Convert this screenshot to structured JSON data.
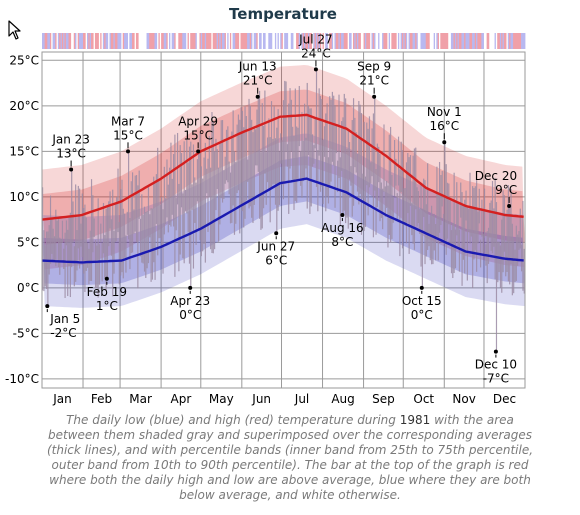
{
  "chart_data": {
    "type": "line",
    "title": "Temperature",
    "year": "1981",
    "y_unit": "°C",
    "ylim": [
      -11,
      28
    ],
    "xlim": [
      0,
      365
    ],
    "grid": true,
    "y_ticks": [
      -10,
      -5,
      0,
      5,
      10,
      15,
      20,
      25
    ],
    "y_tick_labels": [
      "-10°C",
      "-5°C",
      "0°C",
      "5°C",
      "10°C",
      "15°C",
      "20°C",
      "25°C"
    ],
    "months": [
      "Jan",
      "Feb",
      "Mar",
      "Apr",
      "May",
      "Jun",
      "Jul",
      "Aug",
      "Sep",
      "Oct",
      "Nov",
      "Dec"
    ],
    "series": [
      {
        "kind": "average high (thick red line)",
        "color": "#d42020",
        "x": [
          0,
          30,
          60,
          90,
          120,
          150,
          180,
          200,
          230,
          260,
          290,
          320,
          350,
          365
        ],
        "y": [
          7.5,
          8,
          9.5,
          12,
          15,
          17,
          18.8,
          19,
          17.5,
          14.5,
          11,
          9,
          8,
          7.8
        ]
      },
      {
        "kind": "average low (thick blue line)",
        "color": "#1a1ab0",
        "x": [
          0,
          30,
          60,
          90,
          120,
          150,
          180,
          200,
          230,
          260,
          290,
          320,
          350,
          365
        ],
        "y": [
          3,
          2.8,
          3,
          4.5,
          6.5,
          9,
          11.5,
          12,
          10.5,
          8,
          6,
          4,
          3.2,
          3
        ]
      }
    ],
    "annotations": [
      {
        "name": "Jan 5",
        "date": "Jan 5",
        "value": "-2°C",
        "day": 4,
        "temp": -2
      },
      {
        "name": "Jan 23",
        "date": "Jan 23",
        "value": "13°C",
        "day": 22,
        "temp": 13
      },
      {
        "name": "Feb 19",
        "date": "Feb 19",
        "value": "1°C",
        "day": 49,
        "temp": 1
      },
      {
        "name": "Mar 7",
        "date": "Mar 7",
        "value": "15°C",
        "day": 65,
        "temp": 15
      },
      {
        "name": "Apr 23",
        "date": "Apr 23",
        "value": "0°C",
        "day": 112,
        "temp": 0
      },
      {
        "name": "Apr 29",
        "date": "Apr 29",
        "value": "15°C",
        "day": 118,
        "temp": 15
      },
      {
        "name": "Jun 13",
        "date": "Jun 13",
        "value": "21°C",
        "day": 163,
        "temp": 21
      },
      {
        "name": "Jun 27",
        "date": "Jun 27",
        "value": "6°C",
        "day": 177,
        "temp": 6
      },
      {
        "name": "Jul 27",
        "date": "Jul 27",
        "value": "24°C",
        "day": 207,
        "temp": 24
      },
      {
        "name": "Aug 16",
        "date": "Aug 16",
        "value": "8°C",
        "day": 227,
        "temp": 8
      },
      {
        "name": "Sep 9",
        "date": "Sep 9",
        "value": "21°C",
        "day": 251,
        "temp": 21
      },
      {
        "name": "Oct 15",
        "date": "Oct 15",
        "value": "0°C",
        "day": 287,
        "temp": 0
      },
      {
        "name": "Nov 1",
        "date": "Nov 1",
        "value": "16°C",
        "day": 304,
        "temp": 16
      },
      {
        "name": "Dec 10",
        "date": "Dec 10",
        "value": "-7°C",
        "day": 343,
        "temp": -7
      },
      {
        "name": "Dec 20",
        "date": "Dec 20",
        "value": "9°C",
        "day": 353,
        "temp": 9
      }
    ],
    "colors": {
      "high": "#d42020",
      "low": "#1a1ab0",
      "daily_bar": "#a07ab4",
      "range_shade": "#9a9a9a",
      "grid": "#9a9a9a",
      "anomaly_warm": "#f0a0a8",
      "anomaly_cold": "#b8b8f0"
    }
  },
  "caption": {
    "part1": "The daily low (blue) and high (red) temperature during ",
    "year": "1981",
    "part2": " with the area between them shaded gray and superimposed over the corresponding averages (thick lines), and with percentile bands (inner band from 25th to 75th percentile, outer band from 10th to 90th percentile). The bar at the top of the graph is red where both the daily high and low are above average, blue where they are both below average, and white otherwise."
  },
  "pointer": {
    "icon": "mouse-pointer-icon"
  }
}
